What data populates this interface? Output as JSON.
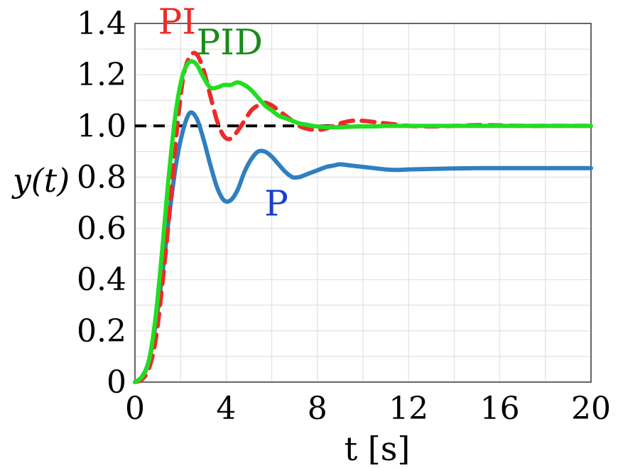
{
  "chart_data": {
    "type": "line",
    "xlabel": "t [s]",
    "ylabel": "y(t)",
    "xlim": [
      0,
      20
    ],
    "ylim": [
      0,
      1.4
    ],
    "xticks": [
      0,
      4,
      8,
      12,
      16,
      20
    ],
    "yticks": [
      0,
      0.2,
      0.4,
      0.6,
      0.8,
      1.0,
      1.2,
      1.4
    ],
    "ytick_labels": [
      "0",
      "0.2",
      "0.4",
      "0.6",
      "0.8",
      "1.0",
      "1.2",
      "1.4"
    ],
    "grid": true,
    "reference_line": {
      "y": 1.0,
      "color": "#000000",
      "style": "dashed"
    },
    "series": [
      {
        "name": "P",
        "color": "#2f7fc1",
        "style": "solid",
        "x": [
          0,
          0.3,
          0.6,
          0.9,
          1.2,
          1.5,
          1.8,
          2.1,
          2.4,
          2.7,
          3.0,
          3.3,
          3.6,
          3.9,
          4.2,
          4.5,
          4.8,
          5.1,
          5.4,
          5.7,
          6.0,
          6.3,
          6.6,
          6.9,
          7.2,
          7.5,
          7.8,
          8.1,
          8.4,
          8.7,
          9.0,
          9.5,
          10,
          10.5,
          11,
          11.5,
          12,
          13,
          14,
          15,
          16,
          17,
          18,
          19,
          20
        ],
        "y": [
          0.0,
          0.02,
          0.08,
          0.22,
          0.42,
          0.65,
          0.85,
          0.98,
          1.05,
          1.03,
          0.95,
          0.85,
          0.76,
          0.71,
          0.71,
          0.75,
          0.82,
          0.87,
          0.9,
          0.9,
          0.88,
          0.85,
          0.82,
          0.8,
          0.8,
          0.81,
          0.82,
          0.83,
          0.84,
          0.845,
          0.85,
          0.845,
          0.84,
          0.835,
          0.83,
          0.828,
          0.83,
          0.832,
          0.834,
          0.835,
          0.835,
          0.835,
          0.835,
          0.835,
          0.835
        ]
      },
      {
        "name": "PI",
        "color": "#ee2a2a",
        "style": "dashed",
        "x": [
          0,
          0.3,
          0.6,
          0.9,
          1.2,
          1.5,
          1.8,
          2.1,
          2.4,
          2.7,
          3.0,
          3.3,
          3.6,
          3.9,
          4.2,
          4.5,
          4.8,
          5.1,
          5.4,
          5.7,
          6.0,
          6.3,
          6.6,
          6.9,
          7.2,
          7.5,
          7.8,
          8.1,
          8.4,
          8.7,
          9.0,
          9.5,
          10,
          10.5,
          11,
          11.5,
          12,
          13,
          14,
          15,
          16,
          17,
          18,
          19,
          20
        ],
        "y": [
          0.0,
          0.01,
          0.05,
          0.16,
          0.38,
          0.65,
          0.95,
          1.18,
          1.27,
          1.28,
          1.22,
          1.12,
          1.02,
          0.96,
          0.95,
          0.98,
          1.02,
          1.06,
          1.08,
          1.09,
          1.08,
          1.06,
          1.04,
          1.02,
          1.0,
          0.99,
          0.985,
          0.985,
          0.99,
          1.0,
          1.01,
          1.02,
          1.02,
          1.015,
          1.01,
          1.005,
          1.0,
          0.998,
          1.0,
          1.003,
          1.002,
          1.0,
          1.0,
          1.0,
          1.0
        ]
      },
      {
        "name": "PID",
        "color": "#22dd22",
        "style": "solid",
        "x": [
          0,
          0.3,
          0.6,
          0.9,
          1.2,
          1.5,
          1.8,
          2.1,
          2.4,
          2.7,
          3.0,
          3.3,
          3.6,
          3.9,
          4.2,
          4.5,
          4.8,
          5.1,
          5.4,
          5.7,
          6.0,
          6.3,
          6.6,
          6.9,
          7.2,
          7.5,
          7.8,
          8.1,
          8.4,
          8.7,
          9.0,
          9.5,
          10,
          10.5,
          11,
          11.5,
          12,
          13,
          14,
          15,
          16,
          17,
          18,
          19,
          20
        ],
        "y": [
          0.0,
          0.02,
          0.08,
          0.25,
          0.52,
          0.82,
          1.06,
          1.2,
          1.25,
          1.24,
          1.19,
          1.15,
          1.15,
          1.16,
          1.16,
          1.17,
          1.16,
          1.14,
          1.11,
          1.08,
          1.06,
          1.04,
          1.03,
          1.02,
          1.01,
          1.005,
          1.0,
          0.997,
          0.995,
          0.995,
          0.995,
          0.997,
          0.998,
          0.998,
          1.0,
          1.0,
          1.0,
          1.0,
          1.0,
          1.0,
          1.0,
          1.0,
          1.0,
          1.0,
          1.0
        ]
      }
    ],
    "annotations": [
      {
        "text": "PI",
        "color": "#ee2a2a",
        "x": 1.85,
        "y": 1.36
      },
      {
        "text": "PID",
        "color": "#1a8a1a",
        "x": 4.15,
        "y": 1.28
      },
      {
        "text": "P",
        "color": "#1a3fcf",
        "x": 6.2,
        "y": 0.65
      }
    ]
  }
}
